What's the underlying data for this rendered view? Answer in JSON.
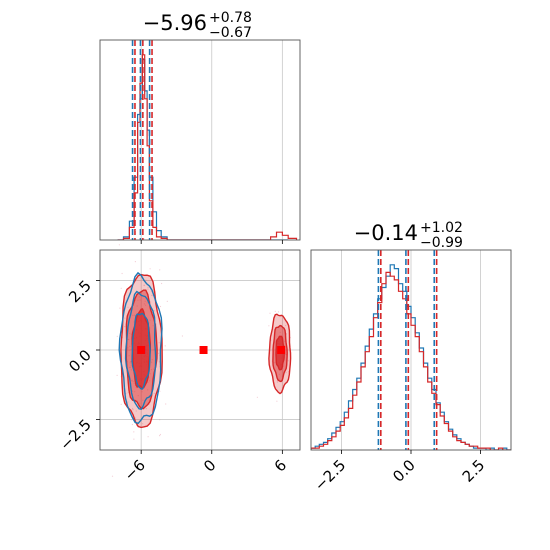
{
  "chart_data": {
    "type": "corner",
    "panels": [
      {
        "kind": "histogram",
        "parameter_index": 0,
        "title": {
          "median": "−5.96",
          "upper": "+0.78",
          "lower": "−0.67"
        },
        "xlim": [
          -9.5,
          7.5
        ],
        "x_ticks": [
          -6,
          0,
          6
        ],
        "quantiles": [
          -6.63,
          -5.96,
          -5.18
        ],
        "series": [
          {
            "name": "blue",
            "color": "#1f77b4",
            "bin_edges": [
              -8,
              -7.5,
              -7,
              -6.6,
              -6.3,
              -6.1,
              -5.9,
              -5.7,
              -5.5,
              -5.3,
              -5.0,
              -4.7,
              -4.3,
              -3.8,
              0,
              5,
              6.5
            ],
            "counts": [
              0,
              2,
              12,
              40,
              80,
              90,
              115,
              95,
              70,
              40,
              18,
              6,
              2,
              0,
              0,
              0
            ]
          },
          {
            "name": "red",
            "color": "#d62728",
            "bin_edges": [
              -8,
              -7.5,
              -7,
              -6.6,
              -6.3,
              -6.1,
              -5.9,
              -5.7,
              -5.5,
              -5.3,
              -5.0,
              -4.7,
              -4.3,
              -3.8,
              0,
              5,
              5.5,
              6.0,
              6.5,
              7.2
            ],
            "counts": [
              0,
              1,
              8,
              30,
              75,
              100,
              118,
              90,
              60,
              25,
              8,
              2,
              1,
              0,
              0,
              2,
              5,
              3,
              1
            ]
          }
        ]
      },
      {
        "kind": "histogram",
        "parameter_index": 1,
        "title": {
          "median": "−0.14",
          "upper": "+1.02",
          "lower": "−0.99"
        },
        "xlim": [
          -3.6,
          3.6
        ],
        "x_ticks": [
          -2.5,
          0.0,
          2.5
        ],
        "x_tick_labels": [
          "−2.5",
          "0.0",
          "2.5"
        ],
        "quantiles": [
          -1.13,
          -0.14,
          0.88
        ],
        "series": [
          {
            "name": "blue",
            "color": "#1f77b4",
            "bin_min": -3.6,
            "bin_width": 0.15,
            "counts": [
              1,
              2,
              3,
              4,
              6,
              9,
              12,
              15,
              20,
              26,
              32,
              38,
              46,
              55,
              64,
              72,
              80,
              86,
              92,
              98,
              96,
              88,
              84,
              76,
              70,
              62,
              54,
              46,
              38,
              32,
              25,
              20,
              15,
              11,
              8,
              6,
              4,
              3,
              2,
              1,
              1,
              1,
              0,
              1,
              0,
              0,
              1,
              0
            ]
          },
          {
            "name": "red",
            "color": "#d62728",
            "bin_min": -3.6,
            "bin_width": 0.15,
            "counts": [
              1,
              1,
              2,
              3,
              5,
              7,
              10,
              13,
              17,
              22,
              29,
              36,
              44,
              52,
              60,
              70,
              78,
              88,
              94,
              92,
              90,
              84,
              80,
              72,
              66,
              60,
              52,
              44,
              36,
              30,
              24,
              18,
              14,
              10,
              7,
              5,
              4,
              3,
              2,
              2,
              1,
              1,
              1,
              0,
              0,
              1,
              0,
              0
            ]
          }
        ]
      },
      {
        "kind": "2d-contour",
        "x_parameter": 0,
        "y_parameter": 1,
        "xlim": [
          -9.5,
          7.5
        ],
        "ylim": [
          -3.6,
          3.6
        ],
        "x_ticks": [
          -6,
          0,
          6
        ],
        "y_ticks": [
          -2.5,
          0.0,
          2.5
        ],
        "y_tick_labels": [
          "−2.5",
          "0.0",
          "2.5"
        ],
        "red_contours": [
          {
            "center": [
              -6.0,
              0.0
            ],
            "rx": [
              0.75,
              1.3,
              1.75
            ],
            "ry": [
              1.4,
              2.1,
              2.75
            ]
          },
          {
            "center": [
              5.8,
              -0.1
            ],
            "rx": [
              0.35,
              0.6,
              0.9
            ],
            "ry": [
              0.6,
              1.0,
              1.4
            ]
          }
        ],
        "blue_contours": [
          {
            "center": [
              -6.0,
              0.0
            ],
            "rx": [
              0.75,
              1.25,
              1.75
            ],
            "ry": [
              1.35,
              2.05,
              2.6
            ]
          }
        ],
        "markers": [
          {
            "color": "#1f55ff",
            "x": -6.0,
            "y": 0.0
          },
          {
            "color": "#ff0000",
            "x": -6.0,
            "y": 0.0
          },
          {
            "color": "#ff0000",
            "x": -0.7,
            "y": 0.0
          },
          {
            "color": "#ff0000",
            "x": 5.9,
            "y": 0.0
          }
        ]
      }
    ]
  }
}
